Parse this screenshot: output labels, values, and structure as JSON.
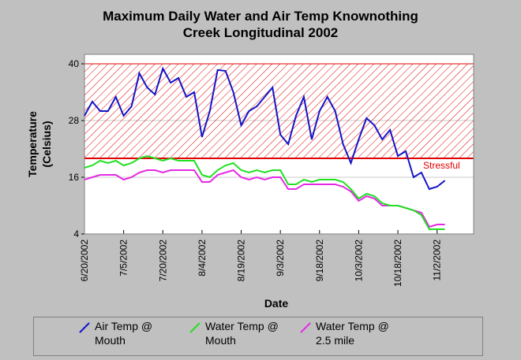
{
  "chart_data": {
    "type": "line",
    "title": "Maximum Daily Water and Air Temp Knownothing Creek Longitudinal 2002",
    "x_label": "Date",
    "y_label": "Temperature (Celsius)",
    "x": [
      "2002-06-20",
      "2002-06-23",
      "2002-06-26",
      "2002-06-29",
      "2002-07-02",
      "2002-07-05",
      "2002-07-08",
      "2002-07-11",
      "2002-07-14",
      "2002-07-17",
      "2002-07-20",
      "2002-07-23",
      "2002-07-26",
      "2002-07-29",
      "2002-08-01",
      "2002-08-04",
      "2002-08-07",
      "2002-08-10",
      "2002-08-13",
      "2002-08-16",
      "2002-08-19",
      "2002-08-22",
      "2002-08-25",
      "2002-08-28",
      "2002-08-31",
      "2002-09-03",
      "2002-09-06",
      "2002-09-09",
      "2002-09-12",
      "2002-09-15",
      "2002-09-18",
      "2002-09-21",
      "2002-09-24",
      "2002-09-27",
      "2002-09-30",
      "2002-10-03",
      "2002-10-06",
      "2002-10-09",
      "2002-10-12",
      "2002-10-15",
      "2002-10-18",
      "2002-10-21",
      "2002-10-24",
      "2002-10-27",
      "2002-10-30",
      "2002-11-02",
      "2002-11-05"
    ],
    "series": [
      {
        "name": "Air Temp @ Mouth",
        "color": "#1414c8",
        "values": [
          29,
          32,
          30,
          30,
          33,
          29,
          31,
          38,
          35,
          33.5,
          39,
          36,
          37,
          33,
          34,
          24.5,
          30,
          38.7,
          38.5,
          34,
          27,
          30,
          31,
          33,
          35,
          25,
          23,
          29,
          33,
          24,
          30,
          33,
          30,
          23,
          19,
          24,
          28.5,
          27,
          24,
          26,
          20.5,
          21.5,
          16,
          17,
          13.5,
          14,
          15.3
        ]
      },
      {
        "name": "Water Temp @ Mouth",
        "color": "#22e022",
        "values": [
          18,
          18.5,
          19.5,
          19,
          19.5,
          18.5,
          19,
          20,
          20.5,
          20,
          19.5,
          20,
          19.5,
          19.5,
          19.5,
          16.5,
          16,
          17.5,
          18.5,
          19,
          17.5,
          17,
          17.5,
          17,
          17.5,
          17.5,
          14.5,
          14.5,
          15.5,
          15,
          15.5,
          15.5,
          15.5,
          15,
          13.5,
          11.5,
          12.5,
          12,
          10.5,
          10,
          10,
          9.5,
          9,
          8,
          5,
          5,
          5
        ]
      },
      {
        "name": "Water Temp @ 2.5 mile",
        "color": "#e628e6",
        "values": [
          15.5,
          16,
          16.5,
          16.5,
          16.5,
          15.5,
          16,
          17,
          17.5,
          17.5,
          17,
          17.5,
          17.5,
          17.5,
          17.5,
          15,
          15,
          16.5,
          17,
          17.5,
          16,
          15.5,
          16,
          15.5,
          16,
          16,
          13.5,
          13.5,
          14.5,
          14.5,
          14.5,
          14.5,
          14.5,
          14,
          13,
          11,
          12,
          11.5,
          10,
          10,
          10,
          9.5,
          9,
          8.5,
          5.5,
          6,
          6
        ]
      }
    ],
    "xlim": [
      "2002-06-20",
      "2002-11-16"
    ],
    "xticks": [
      {
        "value": "2002-06-20",
        "label": "6/20/2002"
      },
      {
        "value": "2002-07-05",
        "label": "7/5/2002"
      },
      {
        "value": "2002-07-20",
        "label": "7/20/2002"
      },
      {
        "value": "2002-08-04",
        "label": "8/4/2002"
      },
      {
        "value": "2002-08-19",
        "label": "8/19/2002"
      },
      {
        "value": "2002-09-03",
        "label": "9/3/2002"
      },
      {
        "value": "2002-09-18",
        "label": "9/18/2002"
      },
      {
        "value": "2002-10-03",
        "label": "10/3/2002"
      },
      {
        "value": "2002-10-18",
        "label": "10/18/2002"
      },
      {
        "value": "2002-11-02",
        "label": "11/2/2002"
      }
    ],
    "ylim": [
      4,
      42
    ],
    "yticks": [
      4,
      16,
      28,
      40
    ],
    "grid": true,
    "threshold": {
      "value": 20,
      "top": 40,
      "label": "Stressful",
      "color": "#e00000"
    },
    "legend": "bottom"
  }
}
